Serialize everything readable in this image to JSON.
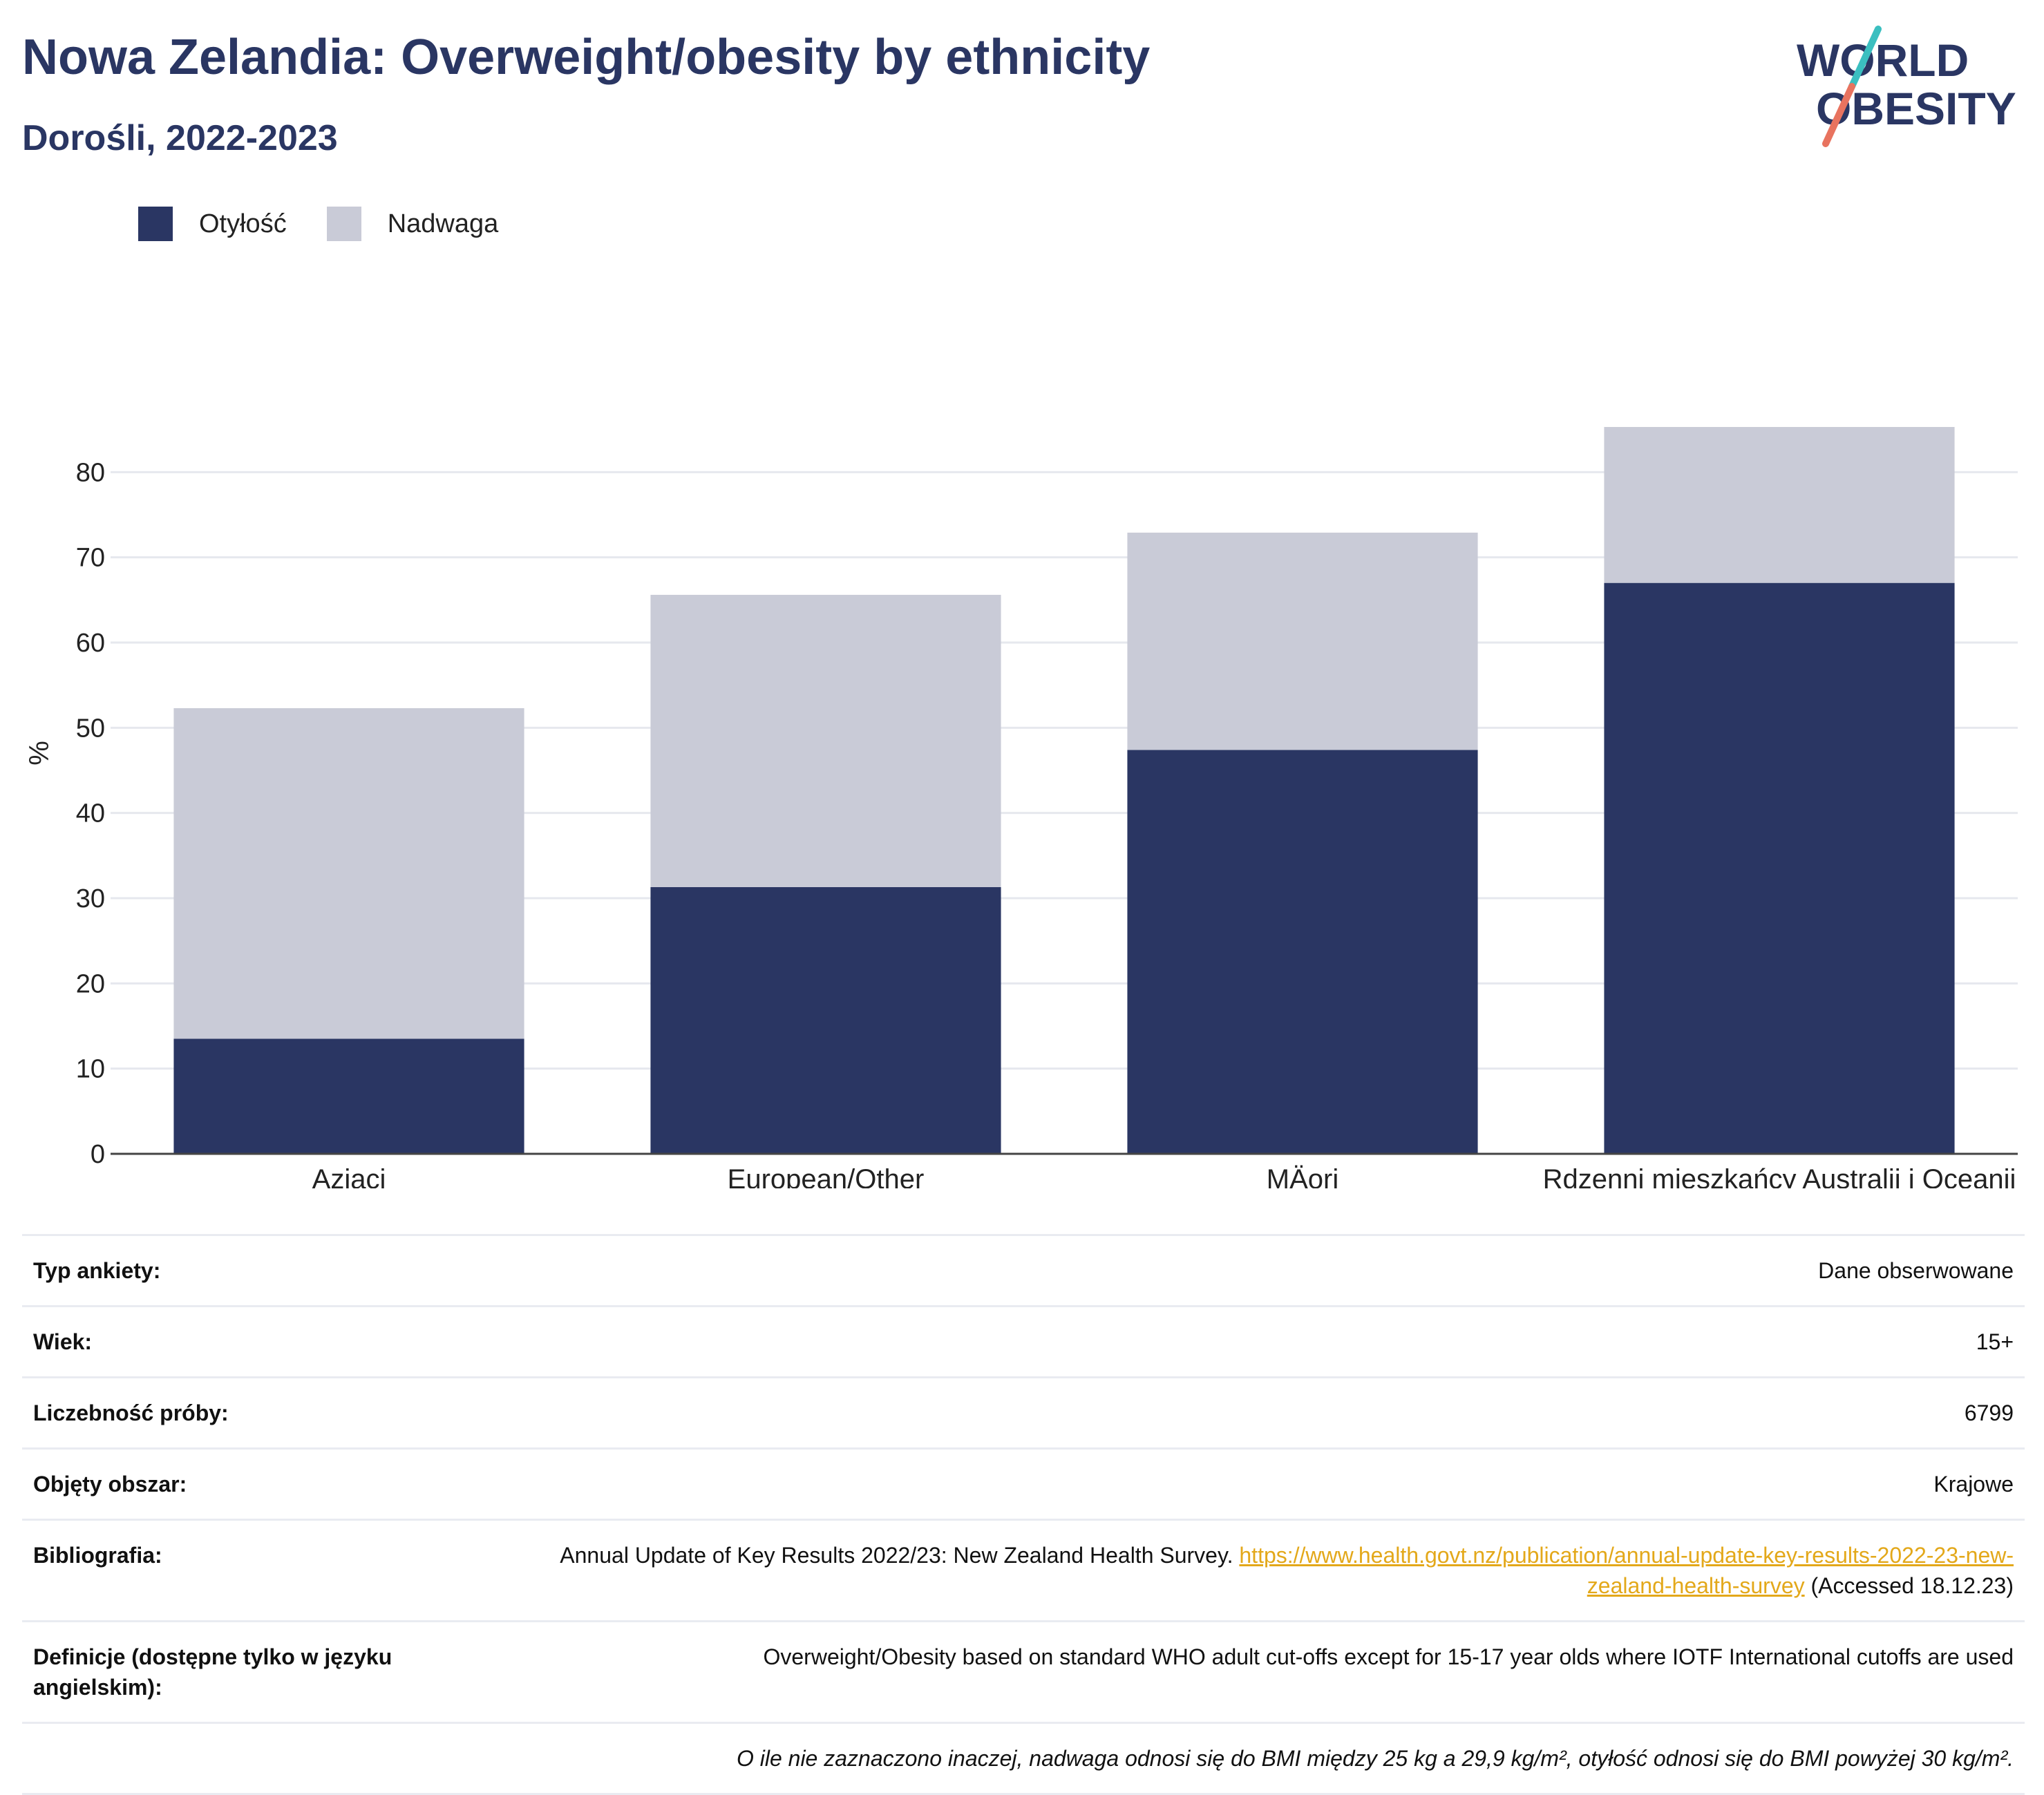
{
  "title": "Nowa Zelandia: Overweight/obesity by ethnicity",
  "subtitle": "Dorośli, 2022-2023",
  "logo": {
    "line1": "WORLD",
    "line2": "OBESITY"
  },
  "colors": {
    "obesity": "#2a3663",
    "overweight": "#c9cbd7",
    "text_dark": "#2a3663",
    "link": "#e3a81a"
  },
  "legend": [
    {
      "label": "Otyłość",
      "color": "#2a3663"
    },
    {
      "label": "Nadwaga",
      "color": "#c9cbd7"
    }
  ],
  "chart_data": {
    "type": "bar",
    "stacked": true,
    "categories": [
      "Azjaci",
      "European/Other",
      "MÄori",
      "Rdzenni mieszkańcy Australii i Oceanii"
    ],
    "series": [
      {
        "name": "Otyłość",
        "values": [
          13.5,
          31.3,
          47.4,
          67.0
        ]
      },
      {
        "name": "Nadwaga",
        "values": [
          38.8,
          34.3,
          25.5,
          18.3
        ]
      }
    ],
    "ylabel": "%",
    "ylim": [
      0,
      90
    ],
    "yticks": [
      0,
      10,
      20,
      30,
      40,
      50,
      60,
      70,
      80
    ],
    "grid": true,
    "legend_position": "top-left"
  },
  "info": [
    {
      "label": "Typ ankiety:",
      "value": "Dane obserwowane"
    },
    {
      "label": "Wiek:",
      "value": "15+"
    },
    {
      "label": "Liczebność próby:",
      "value": "6799"
    },
    {
      "label": "Objęty obszar:",
      "value": "Krajowe"
    }
  ],
  "bibliography": {
    "label": "Bibliografia:",
    "text": "Annual Update of Key Results 2022/23: New Zealand Health Survey.",
    "url": "https://www.health.govt.nz/publication/annual-update-key-results-2022-23-new-zealand-health-survey",
    "accessed": "(Accessed 18.12.23)"
  },
  "definitions": {
    "label": "Definicje (dostępne tylko w języku angielskim):",
    "text": "Overweight/Obesity based on standard WHO adult cut-offs except for 15-17 year olds where IOTF International cutoffs are used"
  },
  "note": "O ile nie zaznaczono inaczej, nadwaga odnosi się do BMI między 25 kg a 29,9 kg/m², otyłość odnosi się do BMI powyżej 30 kg/m²."
}
